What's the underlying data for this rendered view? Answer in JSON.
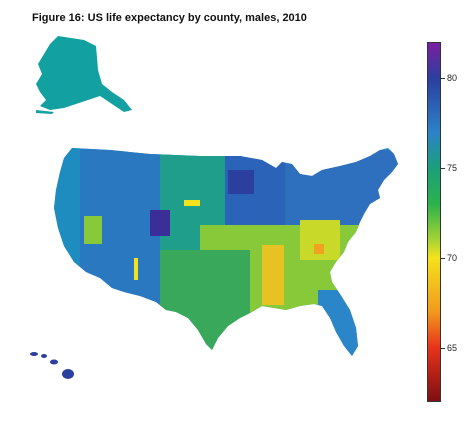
{
  "figure": {
    "title": "Figure 16: US life expectancy by county, males, 2010"
  },
  "legend": {
    "min": 62,
    "max": 82,
    "ticks": [
      {
        "value": 80,
        "label": "80"
      },
      {
        "value": 75,
        "label": "75"
      },
      {
        "value": 70,
        "label": "70"
      },
      {
        "value": 65,
        "label": "65"
      }
    ],
    "color_stops": [
      {
        "value": 82,
        "color": "#7a1fa2"
      },
      {
        "value": 80,
        "color": "#2b3f9e"
      },
      {
        "value": 77,
        "color": "#2c82c9"
      },
      {
        "value": 75,
        "color": "#1aa07a"
      },
      {
        "value": 73,
        "color": "#2bb24c"
      },
      {
        "value": 71,
        "color": "#a6d334"
      },
      {
        "value": 70,
        "color": "#f4e21c"
      },
      {
        "value": 67,
        "color": "#f29a1d"
      },
      {
        "value": 65,
        "color": "#e8331a"
      },
      {
        "value": 62,
        "color": "#7d0f12"
      }
    ]
  },
  "map_colors": {
    "alaska": "#12a0a0",
    "hawaii": "#2b3f9e",
    "west": "#2a86c8",
    "midwest": "#1f9e8c",
    "south": "#88c93a",
    "appalachia": "#f2c81c",
    "northeast": "#2e6fbe",
    "hotspot_low": "#f0a11d",
    "hotspot_high": "#3b2e98"
  }
}
